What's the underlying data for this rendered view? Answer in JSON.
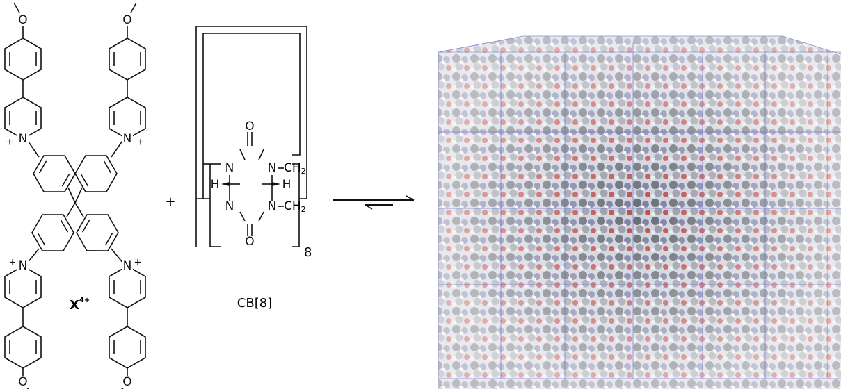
{
  "guest": {
    "label": "X",
    "charge": "4+",
    "oxygen": "O",
    "nitrogen": "N",
    "positive": "+"
  },
  "reaction": {
    "plus": "+"
  },
  "host": {
    "label": "CB[8]",
    "carbonyl": "O",
    "nitrogen": "N",
    "methylene": "CH",
    "subscript": "2",
    "hydrogen": "H",
    "repeat": "8"
  }
}
